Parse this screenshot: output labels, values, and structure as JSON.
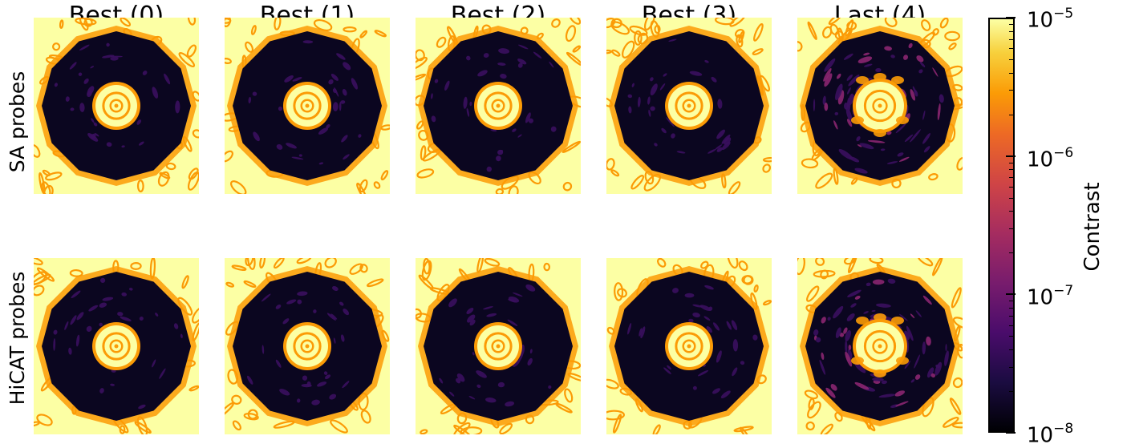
{
  "chart_data": {
    "type": "heatmap",
    "title": "",
    "columns": [
      "Best (0)",
      "Best (1)",
      "Best (2)",
      "Best (3)",
      "Last (4)"
    ],
    "rows": [
      "SA probes",
      "HiCAT probes"
    ],
    "colorbar": {
      "label": "Contrast",
      "scale": "log",
      "range": [
        1e-08,
        1e-05
      ],
      "ticks": [
        {
          "base": "10",
          "exp": "−8",
          "value": 1e-08
        },
        {
          "base": "10",
          "exp": "−7",
          "value": 1e-07
        },
        {
          "base": "10",
          "exp": "−6",
          "value": 1e-06
        },
        {
          "base": "10",
          "exp": "−5",
          "value": 1e-05
        }
      ],
      "colormap": "inferno"
    },
    "colors": {
      "bright": "#fcffa4",
      "orange": "#fb9b06",
      "dark": "#0b0620",
      "dark_purple": "#3a0f5e"
    }
  }
}
